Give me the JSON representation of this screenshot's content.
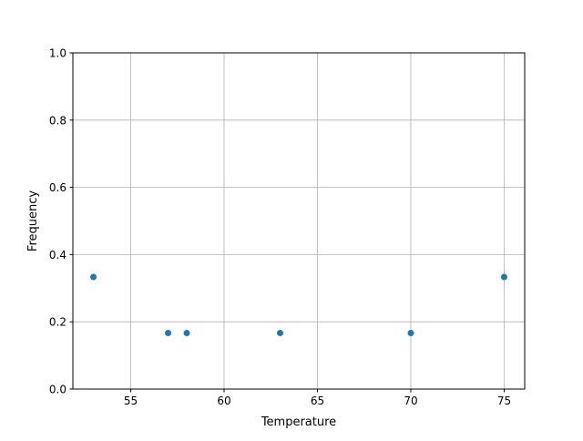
{
  "chart_data": {
    "type": "scatter",
    "title": "",
    "xlabel": "Temperature",
    "ylabel": "Frequency",
    "xlim": [
      51.9,
      76.1
    ],
    "ylim": [
      0,
      1.0
    ],
    "x_ticks": [
      55,
      60,
      65,
      70,
      75
    ],
    "y_ticks": [
      0.0,
      0.2,
      0.4,
      0.6,
      0.8,
      1.0
    ],
    "x_tick_labels": [
      "55",
      "60",
      "65",
      "70",
      "75"
    ],
    "y_tick_labels": [
      "0.0",
      "0.2",
      "0.4",
      "0.6",
      "0.8",
      "1.0"
    ],
    "grid": true,
    "points": [
      {
        "x": 53,
        "y": 0.3333
      },
      {
        "x": 57,
        "y": 0.1667
      },
      {
        "x": 58,
        "y": 0.1667
      },
      {
        "x": 63,
        "y": 0.1667
      },
      {
        "x": 70,
        "y": 0.1667
      },
      {
        "x": 75,
        "y": 0.3333
      }
    ],
    "marker_color": "#1f77b4",
    "grid_color": "#b0b0b0"
  }
}
